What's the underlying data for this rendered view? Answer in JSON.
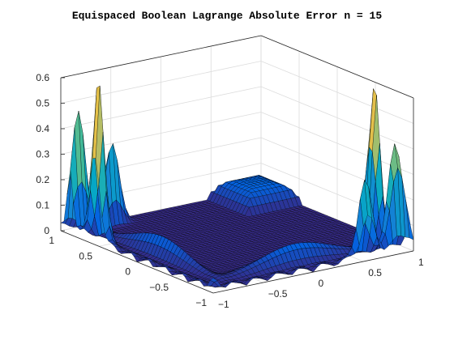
{
  "chart_data": {
    "type": "surface",
    "title": "Equispaced Boolean Lagrange Absolute Error n = 15",
    "x": {
      "label": "",
      "lim": [
        -1,
        1
      ],
      "ticks": [
        -1,
        -0.5,
        0,
        0.5,
        1
      ],
      "tick_labels": [
        "−1",
        "−0.5",
        "0",
        "0.5",
        "1"
      ]
    },
    "y": {
      "label": "",
      "lim": [
        -1,
        1
      ],
      "ticks": [
        -1,
        -0.5,
        0,
        0.5,
        1
      ],
      "tick_labels": [
        "−1",
        "−0.5",
        "0",
        "0.5",
        "1"
      ]
    },
    "z": {
      "label": "",
      "lim": [
        0,
        0.6
      ],
      "ticks": [
        0,
        0.1,
        0.2,
        0.3,
        0.4,
        0.5,
        0.6
      ],
      "tick_labels": [
        "0",
        "0.1",
        "0.2",
        "0.3",
        "0.4",
        "0.5",
        "0.6"
      ]
    },
    "grid": true,
    "colormap": "parula",
    "colormap_colors": [
      "#352a87",
      "#0363e1",
      "#1485d4",
      "#06a7c6",
      "#38b99e",
      "#92bf73",
      "#d9ba56",
      "#fcce2e",
      "#f9fb0e"
    ],
    "edge_color": "#000000",
    "peaks": [
      {
        "x": -0.96,
        "y": 0.56,
        "z": 0.62
      },
      {
        "x": -0.92,
        "y": 0.88,
        "z": 0.48
      },
      {
        "x": -0.55,
        "y": 0.93,
        "z": 0.34
      },
      {
        "x": 0.91,
        "y": -0.6,
        "z": 0.62
      },
      {
        "x": 0.88,
        "y": -0.93,
        "z": 0.45
      },
      {
        "x": 0.55,
        "y": -0.96,
        "z": 0.29
      },
      {
        "x": 0.0,
        "y": -0.75,
        "z": 0.08
      },
      {
        "x": -0.75,
        "y": 0.0,
        "z": 0.08
      }
    ],
    "plateau": {
      "z": 0.08,
      "center": [
        0.75,
        0.75
      ]
    }
  }
}
